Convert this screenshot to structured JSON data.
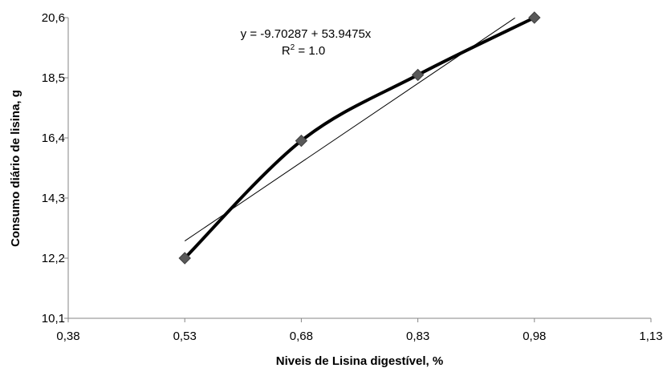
{
  "chart_data": {
    "type": "scatter",
    "title": "",
    "xlabel": "Niveis de Lisina digestível, %",
    "ylabel": "Consumo diário de lisina, g",
    "x_ticks": [
      "0,38",
      "0,53",
      "0,68",
      "0,83",
      "0,98",
      "1,13"
    ],
    "y_ticks": [
      "10,1",
      "12,2",
      "14,3",
      "16,4",
      "18,5",
      "20,6"
    ],
    "xlim": [
      0.38,
      1.13
    ],
    "ylim": [
      10.1,
      20.6
    ],
    "grid": false,
    "legend": "none",
    "series": [
      {
        "x": [
          0.53,
          0.68,
          0.83,
          0.98
        ],
        "y": [
          12.2,
          16.3,
          18.6,
          20.6
        ],
        "marker": "diamond",
        "line": "smooth",
        "marker_color": "#595959",
        "line_color": "#000000"
      }
    ],
    "trendline": {
      "type": "linear",
      "x_start": 0.53,
      "x_end": 0.955
    },
    "annotations": {
      "equation": "y = -9.70287 + 53.9475x",
      "r_squared_label": "R",
      "r_squared_exp": "2",
      "r_squared_value": " = 1.0"
    }
  }
}
